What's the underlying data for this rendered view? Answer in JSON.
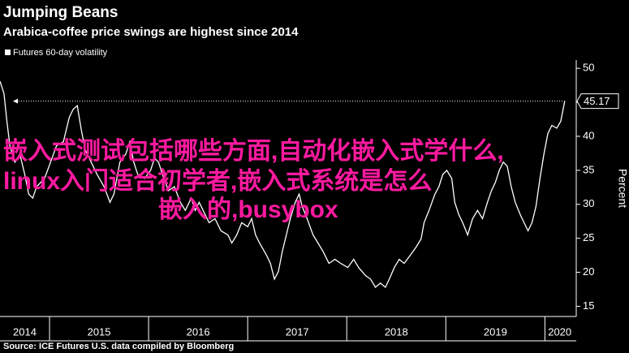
{
  "chart_data": {
    "type": "line",
    "title": "Jumping Beans",
    "subtitle": "Arabica-coffee price swings are highest since 2014",
    "y_label": "Percent",
    "source": "Source: ICE Futures U.S. data compiled by Bloomberg",
    "overlay_text": [
      "嵌入式测试包括哪些方面,自动化嵌入式学什么,",
      "linux入门适合初学者,嵌入式系统是怎么",
      "嵌入的,busybox"
    ],
    "x": [
      2014.5,
      2014.54,
      2014.57,
      2014.6,
      2014.65,
      2014.7,
      2014.75,
      2014.79,
      2014.83,
      2014.87,
      2014.95,
      2015.01,
      2015.07,
      2015.14,
      2015.2,
      2015.24,
      2015.28,
      2015.32,
      2015.36,
      2015.42,
      2015.48,
      2015.55,
      2015.61,
      2015.65,
      2015.71,
      2015.77,
      2015.81,
      2015.85,
      2015.89,
      2015.96,
      2016.02,
      2016.06,
      2016.1,
      2016.14,
      2016.2,
      2016.26,
      2016.32,
      2016.37,
      2016.43,
      2016.47,
      2016.51,
      2016.57,
      2016.61,
      2016.67,
      2016.73,
      2016.8,
      2016.84,
      2016.89,
      2016.94,
      2017.0,
      2017.04,
      2017.08,
      2017.12,
      2017.19,
      2017.23,
      2017.27,
      2017.31,
      2017.35,
      2017.39,
      2017.43,
      2017.48,
      2017.52,
      2017.55,
      2017.6,
      2017.66,
      2017.71,
      2017.76,
      2017.82,
      2017.88,
      2017.94,
      2018.01,
      2018.07,
      2018.12,
      2018.19,
      2018.24,
      2018.29,
      2018.34,
      2018.39,
      2018.43,
      2018.48,
      2018.53,
      2018.58,
      2018.64,
      2018.7,
      2018.75,
      2018.78,
      2018.83,
      2018.89,
      2018.93,
      2018.97,
      2019.01,
      2019.06,
      2019.09,
      2019.13,
      2019.17,
      2019.22,
      2019.27,
      2019.32,
      2019.37,
      2019.42,
      2019.46,
      2019.5,
      2019.54,
      2019.58,
      2019.62,
      2019.66,
      2019.7,
      2019.75,
      2019.79,
      2019.83,
      2019.87,
      2019.91,
      2019.95,
      2019.99,
      2020.03,
      2020.07,
      2020.12,
      2020.16,
      2020.2
    ],
    "series": [
      {
        "name": "Futures 60-day volatility",
        "color": "#ffffff",
        "values": [
          48.1,
          46.3,
          42.2,
          38.6,
          36.2,
          37.4,
          34.4,
          31.5,
          30.9,
          32.6,
          33.8,
          36.2,
          38.6,
          39.2,
          42.8,
          44.0,
          44.5,
          41.0,
          38.0,
          36.2,
          34.4,
          32.6,
          30.3,
          31.5,
          36.2,
          37.4,
          39.2,
          36.2,
          34.4,
          33.8,
          35.0,
          36.8,
          36.2,
          34.4,
          32.0,
          32.6,
          30.3,
          29.1,
          30.9,
          29.1,
          30.3,
          28.5,
          27.3,
          27.9,
          26.1,
          25.5,
          24.3,
          25.5,
          27.3,
          26.7,
          27.9,
          25.5,
          24.3,
          22.5,
          21.3,
          19.0,
          20.1,
          23.1,
          25.5,
          27.9,
          30.3,
          31.5,
          29.7,
          27.9,
          25.5,
          24.3,
          23.1,
          21.3,
          21.9,
          21.3,
          20.7,
          21.9,
          20.7,
          19.5,
          19.0,
          17.8,
          18.4,
          17.8,
          19.0,
          20.7,
          21.9,
          21.3,
          22.5,
          23.7,
          24.9,
          27.3,
          29.1,
          31.5,
          32.6,
          34.4,
          35.0,
          33.8,
          30.3,
          28.5,
          27.3,
          25.5,
          27.9,
          29.1,
          27.9,
          30.3,
          32.0,
          33.2,
          35.0,
          36.2,
          35.6,
          32.6,
          30.3,
          28.5,
          27.3,
          26.1,
          27.3,
          29.7,
          33.8,
          37.4,
          40.4,
          41.6,
          41.2,
          42.2,
          45.17
        ]
      }
    ],
    "last_value": 45.17,
    "xlim": [
      2014.5,
      2020.3
    ],
    "xticks": [
      2014,
      2015,
      2016,
      2017,
      2018,
      2019,
      2020
    ],
    "ylim": [
      13.5,
      50.5
    ],
    "yticks": [
      15,
      20,
      25,
      30,
      35,
      40,
      45,
      50
    ],
    "grid": false
  }
}
